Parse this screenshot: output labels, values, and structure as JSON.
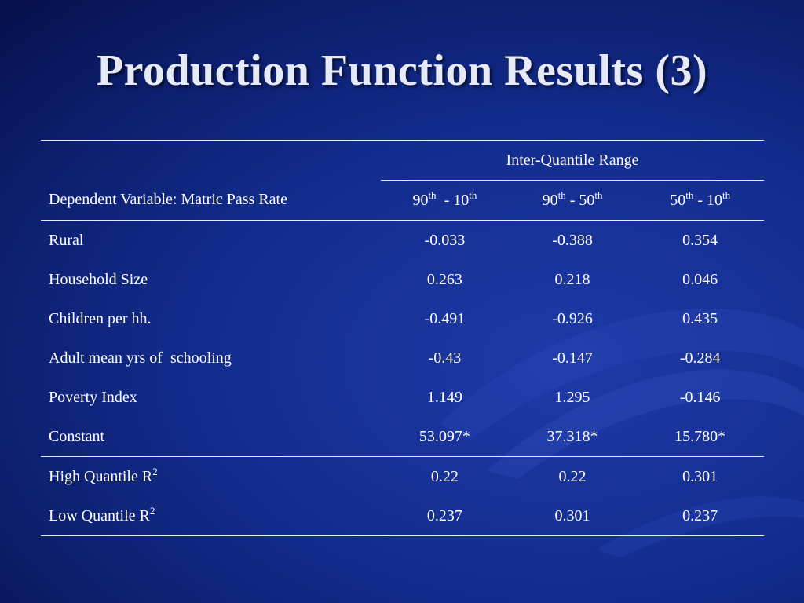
{
  "slide": {
    "title": "Production Function Results (3)"
  },
  "table": {
    "group_header": "Inter-Quantile Range",
    "row_header": "Dependent Variable: Matric Pass Rate",
    "columns": [
      {
        "base1": "90",
        "sup1": "th",
        "sep": "  - ",
        "base2": "10",
        "sup2": "th"
      },
      {
        "base1": "90",
        "sup1": "th",
        "sep": " - ",
        "base2": "50",
        "sup2": "th"
      },
      {
        "base1": "50",
        "sup1": "th",
        "sep": " - ",
        "base2": "10",
        "sup2": "th"
      }
    ],
    "rows": [
      {
        "label": "Rural",
        "values": [
          "-0.033",
          "-0.388",
          "0.354"
        ]
      },
      {
        "label": "Household Size",
        "values": [
          "0.263",
          "0.218",
          "0.046"
        ]
      },
      {
        "label": "Children per hh.",
        "values": [
          "-0.491",
          "-0.926",
          "0.435"
        ]
      },
      {
        "label": "Adult mean yrs of  schooling",
        "values": [
          "-0.43",
          "-0.147",
          "-0.284"
        ]
      },
      {
        "label": "Poverty Index",
        "values": [
          "1.149",
          "1.295",
          "-0.146"
        ]
      },
      {
        "label": "Constant",
        "values": [
          "53.097*",
          "37.318*",
          "15.780*"
        ]
      }
    ],
    "fit_rows": [
      {
        "label": "High Quantile R",
        "sup": "2",
        "values": [
          "0.22",
          "0.22",
          "0.301"
        ]
      },
      {
        "label": "Low Quantile R",
        "sup": "2",
        "values": [
          "0.237",
          "0.301",
          "0.237"
        ]
      }
    ]
  }
}
